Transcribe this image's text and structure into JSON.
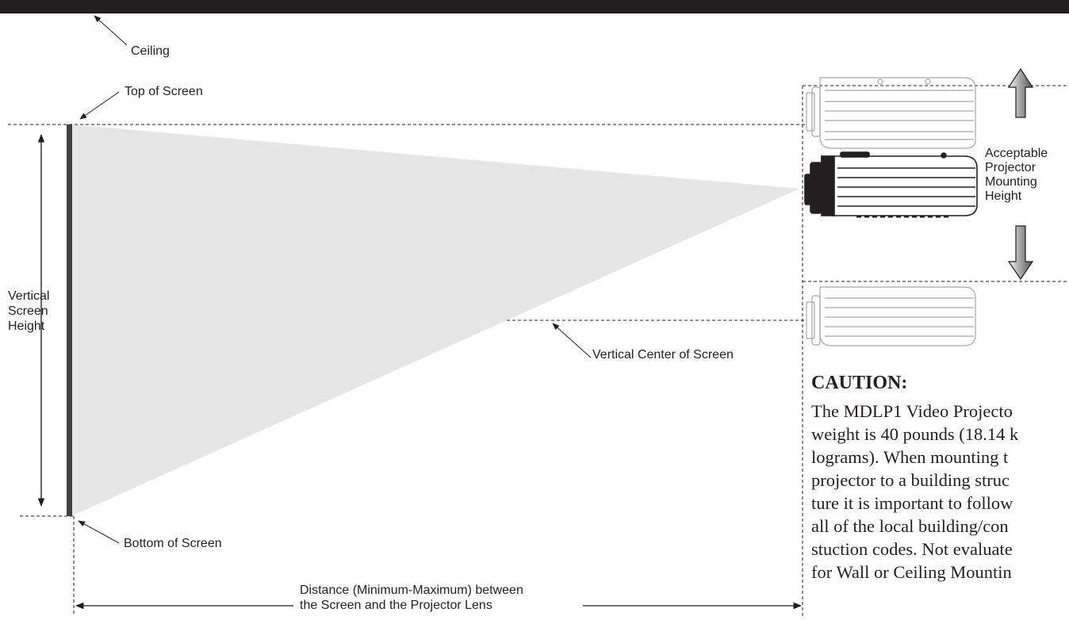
{
  "labels": {
    "ceiling": "Ceiling",
    "top_of_screen": "Top of Screen",
    "vertical_screen_height": [
      "Vertical",
      "Screen",
      "Height"
    ],
    "vertical_center": "Vertical Center of Screen",
    "bottom_of_screen": "Bottom of Screen",
    "distance": [
      "Distance (Minimum-Maximum) between",
      "the Screen and the Projector Lens"
    ],
    "mounting_height": [
      "Acceptable",
      "Projector",
      "Mounting",
      "Height"
    ]
  },
  "caution": {
    "title": "CAUTION:",
    "lines": [
      "The MDLP1 Video Projecto",
      "weight is 40 pounds (18.14 k",
      "lograms). When mounting t",
      "projector to a building struc",
      "ture it is important to follow",
      "all of the local building/con",
      "stuction codes. Not evaluate",
      "for Wall or Ceiling Mountin"
    ]
  },
  "colors": {
    "ink": "#231f20",
    "beam": "#e6e6e6",
    "ghost": "#9a9a9a",
    "screen": "#404040",
    "arrow": "#6d6d6d"
  }
}
